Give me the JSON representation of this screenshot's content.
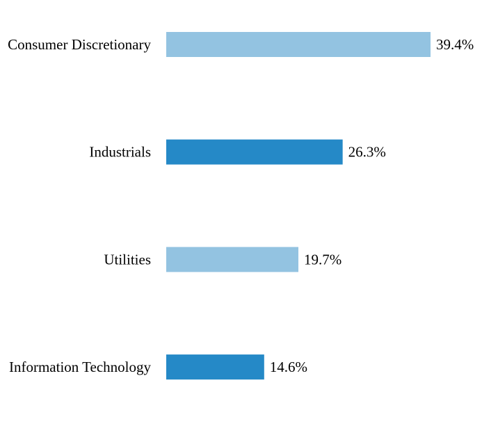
{
  "chart_data": {
    "type": "bar",
    "orientation": "horizontal",
    "categories": [
      "Consumer Discretionary",
      "Industrials",
      "Utilities",
      "Information Technology"
    ],
    "values": [
      39.4,
      26.3,
      19.7,
      14.6
    ],
    "value_labels": [
      "39.4%",
      "26.3%",
      "19.7%",
      "14.6%"
    ],
    "bar_colors": [
      "#93c3e1",
      "#2589c7",
      "#93c3e1",
      "#2589c7"
    ],
    "title": "",
    "xlabel": "",
    "ylabel": "",
    "grid": false,
    "legend": "none"
  }
}
